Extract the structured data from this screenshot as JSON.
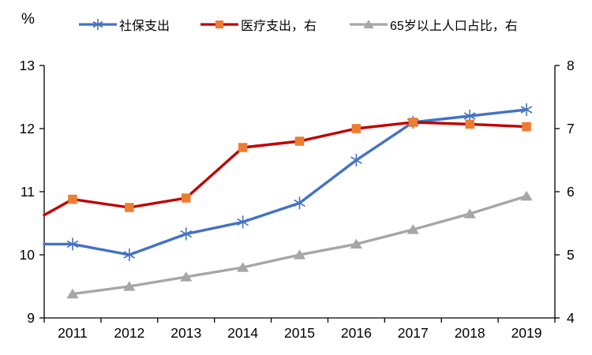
{
  "unit_label": "%",
  "legend": [
    {
      "label": "社保支出",
      "color": "#4472C4",
      "marker": "asterisk",
      "marker_color": "#4472C4"
    },
    {
      "label": "医疗支出，右",
      "color": "#C00000",
      "marker": "square",
      "marker_color": "#ED7D31"
    },
    {
      "label": "65岁以上人口占比，右",
      "color": "#A6A6A6",
      "marker": "triangle",
      "marker_color": "#A6A6A6"
    }
  ],
  "chart_data": {
    "type": "line",
    "title": "",
    "categories": [
      "2011",
      "2012",
      "2013",
      "2014",
      "2015",
      "2016",
      "2017",
      "2018",
      "2019"
    ],
    "series": [
      {
        "name": "社保支出",
        "axis": "left",
        "color": "#4472C4",
        "marker": "asterisk",
        "marker_color": "#4472C4",
        "edge_start": 10.17,
        "values": [
          10.17,
          10.0,
          10.33,
          10.52,
          10.82,
          11.5,
          12.1,
          12.2,
          12.3
        ]
      },
      {
        "name": "医疗支出，右",
        "axis": "right",
        "color": "#C00000",
        "marker": "square",
        "marker_color": "#ED7D31",
        "edge_start": 5.63,
        "values": [
          5.88,
          5.75,
          5.9,
          6.7,
          6.8,
          7.0,
          7.1,
          7.07,
          7.03
        ]
      },
      {
        "name": "65岁以上人口占比，右",
        "axis": "right",
        "color": "#A6A6A6",
        "marker": "triangle",
        "marker_color": "#A6A6A6",
        "edge_start": null,
        "values": [
          4.38,
          4.5,
          4.65,
          4.8,
          5.0,
          5.17,
          5.4,
          5.65,
          5.93
        ]
      }
    ],
    "left_axis": {
      "label": "%",
      "min": 9,
      "max": 13,
      "ticks": [
        13,
        12,
        11,
        10,
        9
      ]
    },
    "right_axis": {
      "min": 4,
      "max": 8,
      "ticks": [
        8,
        7,
        6,
        5,
        4
      ]
    },
    "grid": false,
    "legend_position": "top"
  }
}
